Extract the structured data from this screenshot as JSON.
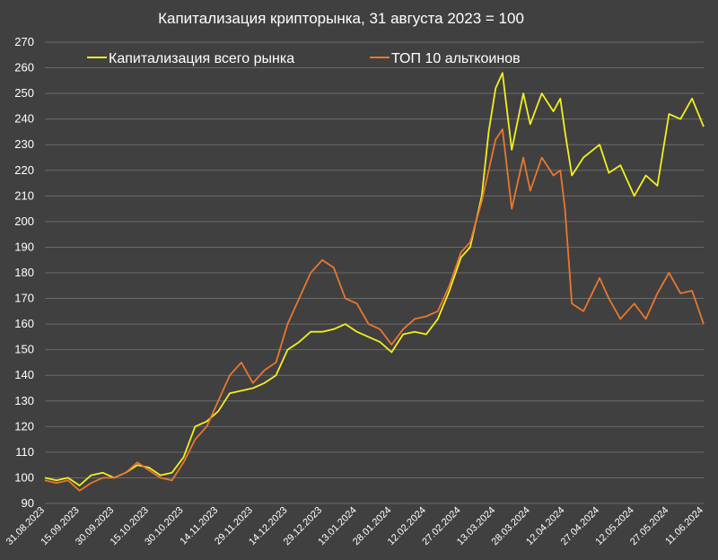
{
  "chart_data": {
    "type": "line",
    "title": "Капитализация крипторынка, 31 августа 2023 = 100",
    "xlabel": "",
    "ylabel": "",
    "ylim": [
      90,
      270
    ],
    "yticks": [
      90,
      100,
      110,
      120,
      130,
      140,
      150,
      160,
      170,
      180,
      190,
      200,
      210,
      220,
      230,
      240,
      250,
      260,
      270
    ],
    "x_tick_labels": [
      "31.08.2023",
      "15.09.2023",
      "30.09.2023",
      "15.10.2023",
      "30.10.2023",
      "14.11.2023",
      "29.11.2023",
      "14.12.2023",
      "29.12.2023",
      "13.01.2024",
      "28.01.2024",
      "12.02.2024",
      "27.02.2024",
      "13.03.2024",
      "28.03.2024",
      "12.04.2024",
      "27.04.2024",
      "12.05.2024",
      "27.05.2024",
      "11.06.2024"
    ],
    "x_start": "2023-08-31",
    "x_end": "2024-06-11",
    "grid": "horizontal",
    "legend_position": "top",
    "background": "#404040",
    "series": [
      {
        "name": "Капитализация всего рынка",
        "color": "#f2ef1f",
        "x": [
          "2023-08-31",
          "2023-09-05",
          "2023-09-10",
          "2023-09-15",
          "2023-09-20",
          "2023-09-25",
          "2023-09-30",
          "2023-10-05",
          "2023-10-10",
          "2023-10-15",
          "2023-10-20",
          "2023-10-25",
          "2023-10-30",
          "2023-11-04",
          "2023-11-09",
          "2023-11-14",
          "2023-11-19",
          "2023-11-24",
          "2023-11-29",
          "2023-12-04",
          "2023-12-09",
          "2023-12-14",
          "2023-12-19",
          "2023-12-24",
          "2023-12-29",
          "2024-01-03",
          "2024-01-08",
          "2024-01-13",
          "2024-01-18",
          "2024-01-23",
          "2024-01-28",
          "2024-02-02",
          "2024-02-07",
          "2024-02-12",
          "2024-02-17",
          "2024-02-22",
          "2024-02-27",
          "2024-03-02",
          "2024-03-07",
          "2024-03-10",
          "2024-03-13",
          "2024-03-16",
          "2024-03-20",
          "2024-03-25",
          "2024-03-28",
          "2024-04-02",
          "2024-04-07",
          "2024-04-10",
          "2024-04-12",
          "2024-04-15",
          "2024-04-20",
          "2024-04-27",
          "2024-05-01",
          "2024-05-06",
          "2024-05-12",
          "2024-05-17",
          "2024-05-22",
          "2024-05-27",
          "2024-06-01",
          "2024-06-06",
          "2024-06-11"
        ],
        "values": [
          100,
          99,
          100,
          97,
          101,
          102,
          100,
          102,
          105,
          104,
          101,
          102,
          108,
          120,
          122,
          126,
          133,
          134,
          135,
          137,
          140,
          150,
          153,
          157,
          157,
          158,
          160,
          157,
          155,
          153,
          149,
          156,
          157,
          156,
          162,
          173,
          186,
          190,
          210,
          235,
          252,
          258,
          228,
          250,
          238,
          250,
          243,
          248,
          235,
          218,
          225,
          230,
          219,
          222,
          210,
          218,
          214,
          242,
          240,
          248,
          237
        ]
      },
      {
        "name": "ТОП 10 альткоинов",
        "color": "#e8772e",
        "x": [
          "2023-08-31",
          "2023-09-05",
          "2023-09-10",
          "2023-09-15",
          "2023-09-20",
          "2023-09-25",
          "2023-09-30",
          "2023-10-05",
          "2023-10-10",
          "2023-10-15",
          "2023-10-20",
          "2023-10-25",
          "2023-10-30",
          "2023-11-04",
          "2023-11-09",
          "2023-11-14",
          "2023-11-19",
          "2023-11-24",
          "2023-11-29",
          "2023-12-04",
          "2023-12-09",
          "2023-12-14",
          "2023-12-19",
          "2023-12-24",
          "2023-12-29",
          "2024-01-03",
          "2024-01-08",
          "2024-01-13",
          "2024-01-18",
          "2024-01-23",
          "2024-01-28",
          "2024-02-02",
          "2024-02-07",
          "2024-02-12",
          "2024-02-17",
          "2024-02-22",
          "2024-02-27",
          "2024-03-02",
          "2024-03-07",
          "2024-03-10",
          "2024-03-13",
          "2024-03-16",
          "2024-03-20",
          "2024-03-25",
          "2024-03-28",
          "2024-04-02",
          "2024-04-07",
          "2024-04-10",
          "2024-04-12",
          "2024-04-15",
          "2024-04-20",
          "2024-04-27",
          "2024-05-01",
          "2024-05-06",
          "2024-05-12",
          "2024-05-17",
          "2024-05-22",
          "2024-05-27",
          "2024-06-01",
          "2024-06-06",
          "2024-06-11"
        ],
        "values": [
          99,
          98,
          99,
          95,
          98,
          100,
          100,
          102,
          106,
          103,
          100,
          99,
          106,
          115,
          120,
          130,
          140,
          145,
          137,
          142,
          145,
          160,
          170,
          180,
          185,
          182,
          170,
          168,
          160,
          158,
          152,
          158,
          162,
          163,
          165,
          175,
          188,
          192,
          208,
          220,
          232,
          236,
          205,
          225,
          212,
          225,
          218,
          220,
          205,
          168,
          165,
          178,
          170,
          162,
          168,
          162,
          172,
          180,
          172,
          173,
          160
        ]
      }
    ]
  }
}
